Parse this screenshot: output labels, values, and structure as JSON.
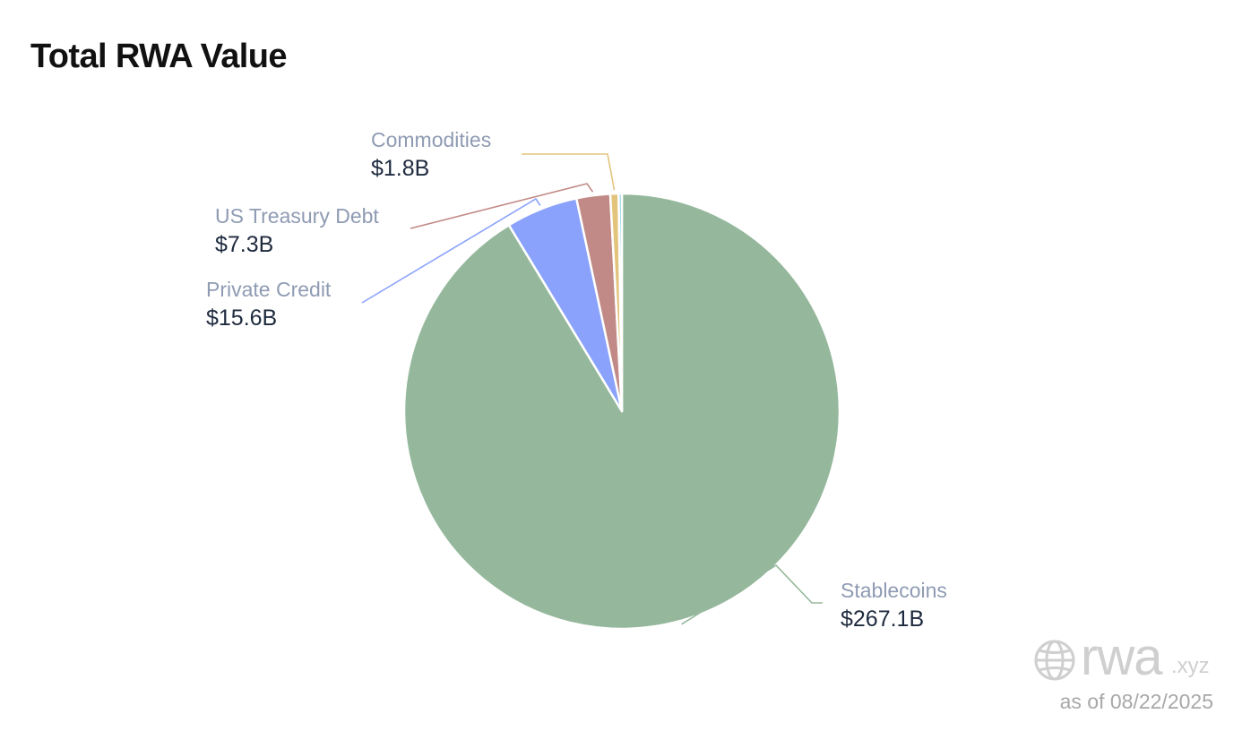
{
  "title": "Total RWA Value",
  "chart_data": {
    "type": "pie",
    "title": "Total RWA Value",
    "unit": "$B",
    "slices": [
      {
        "name": "Stablecoins",
        "value": 267.1,
        "label": "$267.1B",
        "color": "#95b89c"
      },
      {
        "name": "Private Credit",
        "value": 15.6,
        "label": "$15.6B",
        "color": "#8aa2fb"
      },
      {
        "name": "US Treasury Debt",
        "value": 7.3,
        "label": "$7.3B",
        "color": "#c18a86"
      },
      {
        "name": "Commodities",
        "value": 1.8,
        "label": "$1.8B",
        "color": "#e3c47d"
      },
      {
        "name": "",
        "value": 0.7,
        "label": "",
        "color": "#8fd0e3"
      }
    ]
  },
  "branding": {
    "logo_text": "rwa",
    "logo_tld": ".xyz",
    "as_of": "as of 08/22/2025"
  }
}
